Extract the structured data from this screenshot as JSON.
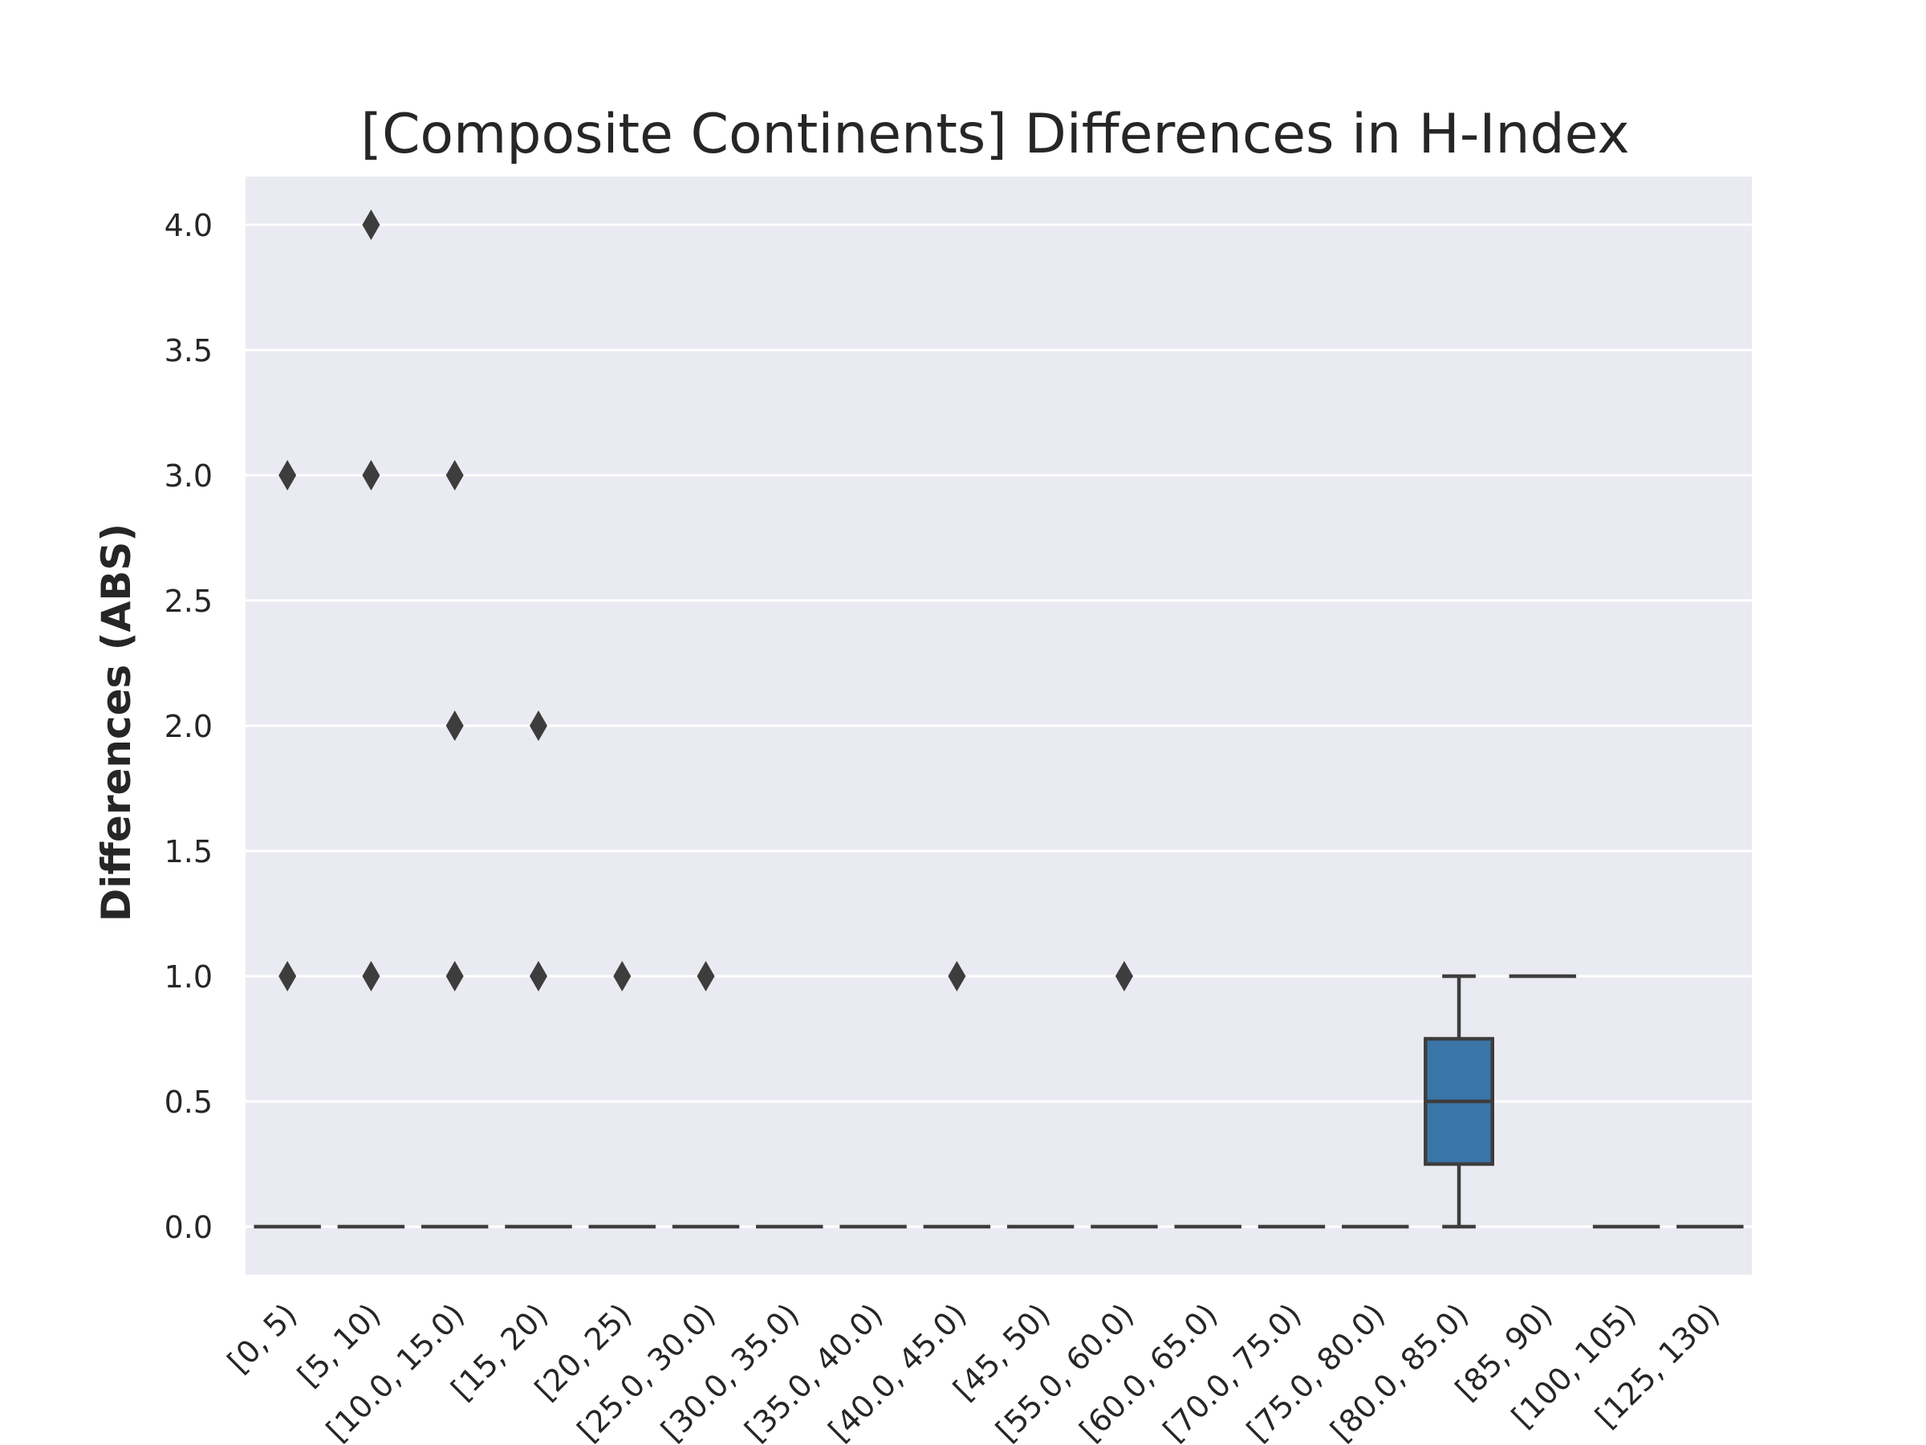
{
  "chart_data": {
    "type": "box",
    "title": "[Composite Continents] Differences in H-Index",
    "xlabel": "",
    "ylabel": "Differences (ABS)",
    "ylim": [
      -0.19,
      4.19
    ],
    "yticks": [
      "0.0",
      "0.5",
      "1.0",
      "1.5",
      "2.0",
      "2.5",
      "3.0",
      "3.5",
      "4.0"
    ],
    "grid": true,
    "categories": [
      "[0, 5)",
      "[5, 10)",
      "[10.0, 15.0)",
      "[15, 20)",
      "[20, 25)",
      "[25.0, 30.0)",
      "[30.0, 35.0)",
      "[35.0, 40.0)",
      "[40.0, 45.0)",
      "[45, 50)",
      "[55.0, 60.0)",
      "[60.0, 65.0)",
      "[70.0, 75.0)",
      "[75.0, 80.0)",
      "[80.0, 85.0)",
      "[85, 90)",
      "[100, 105)",
      "[125, 130)"
    ],
    "boxes": [
      {
        "category": "[0, 5)",
        "min": 0,
        "q1": 0,
        "median": 0,
        "q3": 0,
        "max": 0,
        "outliers": [
          1,
          3
        ]
      },
      {
        "category": "[5, 10)",
        "min": 0,
        "q1": 0,
        "median": 0,
        "q3": 0,
        "max": 0,
        "outliers": [
          1,
          3,
          4
        ]
      },
      {
        "category": "[10.0, 15.0)",
        "min": 0,
        "q1": 0,
        "median": 0,
        "q3": 0,
        "max": 0,
        "outliers": [
          1,
          2,
          3
        ]
      },
      {
        "category": "[15, 20)",
        "min": 0,
        "q1": 0,
        "median": 0,
        "q3": 0,
        "max": 0,
        "outliers": [
          1,
          2
        ]
      },
      {
        "category": "[20, 25)",
        "min": 0,
        "q1": 0,
        "median": 0,
        "q3": 0,
        "max": 0,
        "outliers": [
          1
        ]
      },
      {
        "category": "[25.0, 30.0)",
        "min": 0,
        "q1": 0,
        "median": 0,
        "q3": 0,
        "max": 0,
        "outliers": [
          1
        ]
      },
      {
        "category": "[30.0, 35.0)",
        "min": 0,
        "q1": 0,
        "median": 0,
        "q3": 0,
        "max": 0,
        "outliers": []
      },
      {
        "category": "[35.0, 40.0)",
        "min": 0,
        "q1": 0,
        "median": 0,
        "q3": 0,
        "max": 0,
        "outliers": []
      },
      {
        "category": "[40.0, 45.0)",
        "min": 0,
        "q1": 0,
        "median": 0,
        "q3": 0,
        "max": 0,
        "outliers": [
          1
        ]
      },
      {
        "category": "[45, 50)",
        "min": 0,
        "q1": 0,
        "median": 0,
        "q3": 0,
        "max": 0,
        "outliers": []
      },
      {
        "category": "[55.0, 60.0)",
        "min": 0,
        "q1": 0,
        "median": 0,
        "q3": 0,
        "max": 0,
        "outliers": [
          1
        ]
      },
      {
        "category": "[60.0, 65.0)",
        "min": 0,
        "q1": 0,
        "median": 0,
        "q3": 0,
        "max": 0,
        "outliers": []
      },
      {
        "category": "[70.0, 75.0)",
        "min": 0,
        "q1": 0,
        "median": 0,
        "q3": 0,
        "max": 0,
        "outliers": []
      },
      {
        "category": "[75.0, 80.0)",
        "min": 0,
        "q1": 0,
        "median": 0,
        "q3": 0,
        "max": 0,
        "outliers": []
      },
      {
        "category": "[80.0, 85.0)",
        "min": 0,
        "q1": 0.25,
        "median": 0.5,
        "q3": 0.75,
        "max": 1,
        "outliers": []
      },
      {
        "category": "[85, 90)",
        "min": 1,
        "q1": 1,
        "median": 1,
        "q3": 1,
        "max": 1,
        "outliers": []
      },
      {
        "category": "[100, 105)",
        "min": 0,
        "q1": 0,
        "median": 0,
        "q3": 0,
        "max": 0,
        "outliers": []
      },
      {
        "category": "[125, 130)",
        "min": 0,
        "q1": 0,
        "median": 0,
        "q3": 0,
        "max": 0,
        "outliers": []
      }
    ],
    "colors": {
      "plot_background": "#eaeaf2",
      "grid": "#ffffff",
      "box_fill": "#3a75a8",
      "line": "#3d3d3d",
      "text": "#262626"
    }
  }
}
